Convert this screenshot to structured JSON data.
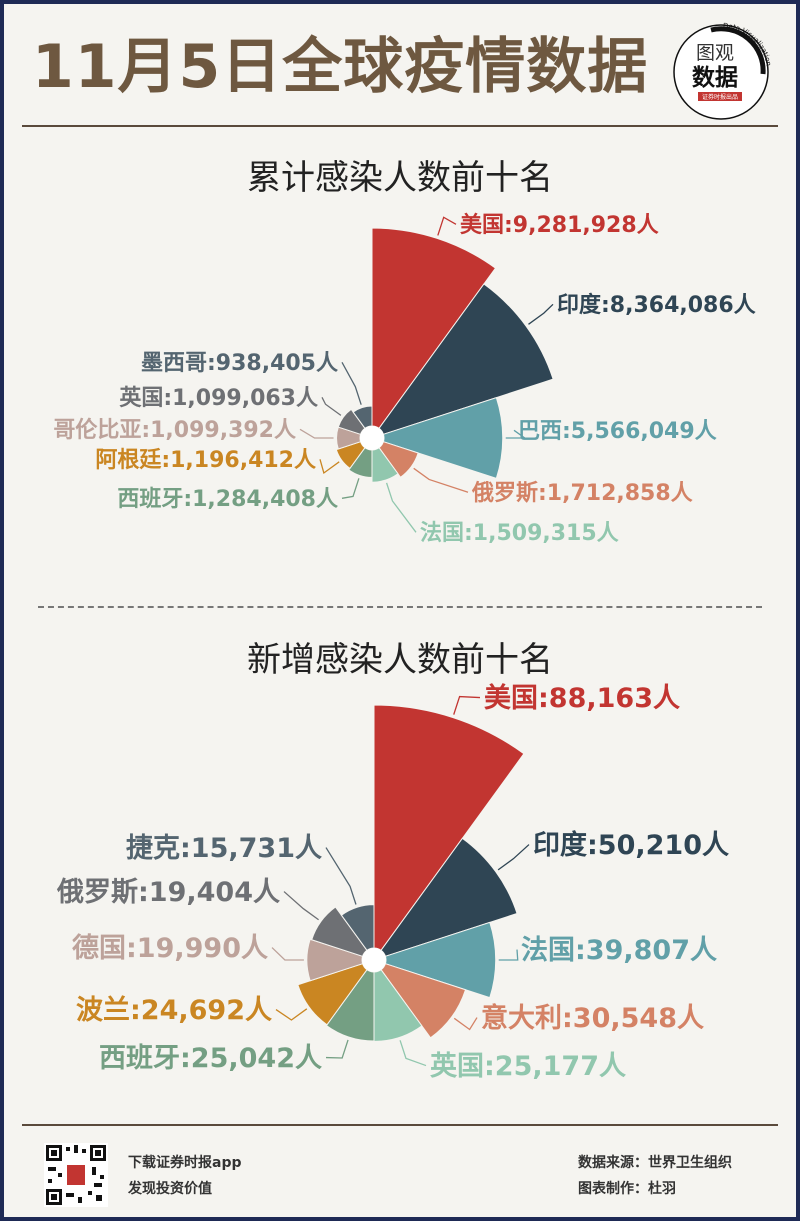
{
  "header": {
    "title": "11月5日全球疫情数据",
    "logo_line1": "图观",
    "logo_line2": "数据",
    "logo_arc": "Data Visualization",
    "logo_footer": "证券时报出品"
  },
  "colors": {
    "border": "#1e2a55",
    "title": "#6e5840"
  },
  "chart_data": [
    {
      "type": "pie",
      "variant": "nightingale-rose",
      "title": "累计感染人数前十名",
      "unit": "人",
      "categories": [
        "美国",
        "印度",
        "巴西",
        "俄罗斯",
        "法国",
        "西班牙",
        "阿根廷",
        "哥伦比亚",
        "英国",
        "墨西哥"
      ],
      "values": [
        9281928,
        8364086,
        5566049,
        1712858,
        1509315,
        1284408,
        1196412,
        1099392,
        1099063,
        938405
      ],
      "labels": [
        "美国:9,281,928人",
        "印度:8,364,086人",
        "巴西:5,566,049人",
        "俄罗斯:1,712,858人",
        "法国:1,509,315人",
        "西班牙:1,284,408人",
        "阿根廷:1,196,412人",
        "哥伦比亚:1,099,392人",
        "英国:1,099,063人",
        "墨西哥:938,405人"
      ],
      "colors": [
        "#c23531",
        "#2f4554",
        "#61a0a8",
        "#d48265",
        "#91c7ae",
        "#749f83",
        "#ca8622",
        "#bda29a",
        "#6e7074",
        "#546570"
      ]
    },
    {
      "type": "pie",
      "variant": "nightingale-rose",
      "title": "新增感染人数前十名",
      "unit": "人",
      "categories": [
        "美国",
        "印度",
        "法国",
        "意大利",
        "英国",
        "西班牙",
        "波兰",
        "德国",
        "俄罗斯",
        "捷克"
      ],
      "values": [
        88163,
        50210,
        39807,
        30548,
        25177,
        25042,
        24692,
        19990,
        19404,
        15731
      ],
      "labels": [
        "美国:88,163人",
        "印度:50,210人",
        "法国:39,807人",
        "意大利:30,548人",
        "英国:25,177人",
        "西班牙:25,042人",
        "波兰:24,692人",
        "德国:19,990人",
        "俄罗斯:19,404人",
        "捷克:15,731人"
      ],
      "colors": [
        "#c23531",
        "#2f4554",
        "#61a0a8",
        "#d48265",
        "#91c7ae",
        "#749f83",
        "#ca8622",
        "#bda29a",
        "#6e7074",
        "#546570"
      ]
    }
  ],
  "footer": {
    "left_line1": "下载证券时报app",
    "left_line2": "发现投资价值",
    "right_line1": "数据来源：世界卫生组织",
    "right_line2": "图表制作：杜羽"
  }
}
